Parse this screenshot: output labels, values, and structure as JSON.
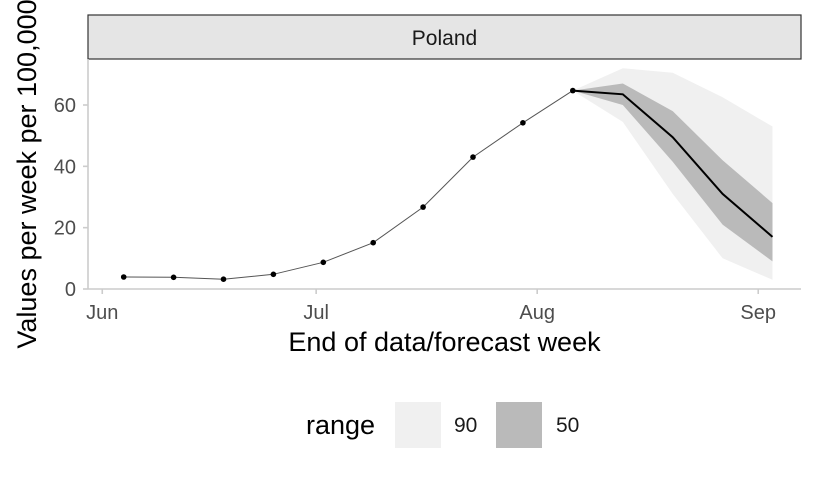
{
  "chart_data": {
    "type": "line",
    "facet": "Poland",
    "xlabel": "End of data/forecast week",
    "ylabel": "Values per week per 100,000",
    "x_ticks": [
      "2021-06-01",
      "2021-07-01",
      "2021-08-01",
      "2021-09-01"
    ],
    "x_tick_labels": [
      "Jun",
      "Jul",
      "Aug",
      "Sep"
    ],
    "xlim": [
      "2021-05-30",
      "2021-09-07"
    ],
    "y_ticks": [
      0,
      20,
      40,
      60
    ],
    "ylim": [
      0,
      75
    ],
    "observed": {
      "x": [
        "2021-06-04",
        "2021-06-11",
        "2021-06-18",
        "2021-06-25",
        "2021-07-02",
        "2021-07-09",
        "2021-07-16",
        "2021-07-23",
        "2021-07-30",
        "2021-08-06"
      ],
      "y": [
        3.9,
        3.8,
        3.2,
        4.8,
        8.7,
        15.1,
        26.7,
        43.0,
        54.2,
        64.7
      ]
    },
    "forecast": {
      "x": [
        "2021-08-06",
        "2021-08-13",
        "2021-08-20",
        "2021-08-27",
        "2021-09-03"
      ],
      "median": [
        64.7,
        63.5,
        49.5,
        31.0,
        17.0
      ],
      "lower_50": [
        64.7,
        60.0,
        41.5,
        21.0,
        9.0
      ],
      "upper_50": [
        64.7,
        67.0,
        58.0,
        42.0,
        28.0
      ],
      "lower_90": [
        64.7,
        54.5,
        31.0,
        10.0,
        3.0
      ],
      "upper_90": [
        64.7,
        72.0,
        70.5,
        62.5,
        53.0
      ]
    },
    "legend": {
      "title": "range",
      "position": "bottom",
      "items": [
        {
          "label": "90",
          "color": "#f0f0f0"
        },
        {
          "label": "50",
          "color": "#bababa"
        }
      ]
    },
    "grid": false
  }
}
